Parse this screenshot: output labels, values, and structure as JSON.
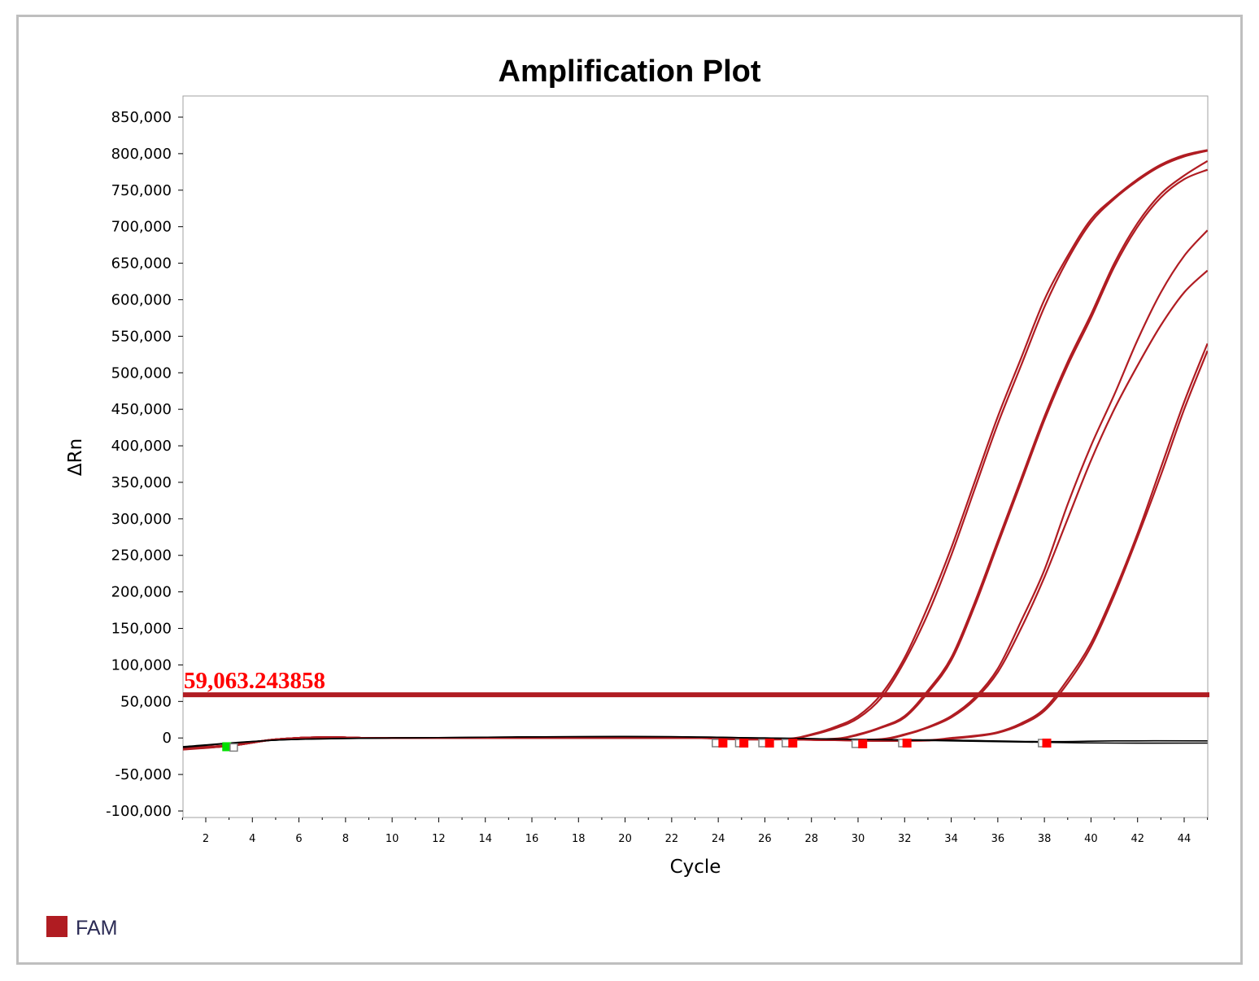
{
  "chart_data": {
    "type": "line",
    "title": "Amplification Plot",
    "xlabel": "Cycle",
    "ylabel": "ΔRn",
    "xlim": [
      1,
      45
    ],
    "ylim": [
      -100000,
      850000
    ],
    "x_ticks": [
      2,
      4,
      6,
      8,
      10,
      12,
      14,
      16,
      18,
      20,
      22,
      24,
      26,
      28,
      30,
      32,
      34,
      36,
      38,
      40,
      42,
      44
    ],
    "y_ticks": [
      {
        "value": 850000,
        "label": "850,000"
      },
      {
        "value": 800000,
        "label": "800,000"
      },
      {
        "value": 750000,
        "label": "750,000"
      },
      {
        "value": 700000,
        "label": "700,000"
      },
      {
        "value": 650000,
        "label": "650,000"
      },
      {
        "value": 600000,
        "label": "600,000"
      },
      {
        "value": 550000,
        "label": "550,000"
      },
      {
        "value": 500000,
        "label": "500,000"
      },
      {
        "value": 450000,
        "label": "450,000"
      },
      {
        "value": 400000,
        "label": "400,000"
      },
      {
        "value": 350000,
        "label": "350,000"
      },
      {
        "value": 300000,
        "label": "300,000"
      },
      {
        "value": 250000,
        "label": "250,000"
      },
      {
        "value": 200000,
        "label": "200,000"
      },
      {
        "value": 150000,
        "label": "150,000"
      },
      {
        "value": 100000,
        "label": "100,000"
      },
      {
        "value": 50000,
        "label": "50,000"
      },
      {
        "value": 0,
        "label": "0"
      },
      {
        "value": -50000,
        "label": "-50,000"
      },
      {
        "value": -100000,
        "label": "-100,000"
      }
    ],
    "grid": false,
    "threshold": {
      "value": 59063.243858,
      "label": "59,063.243858",
      "color": "#b01c22",
      "label_color": "#ff0000"
    },
    "legend": {
      "placement": "bottom-left",
      "entries": [
        {
          "label": "FAM",
          "color": "#b01c22"
        }
      ]
    },
    "series_color": "#b01c22",
    "series": [
      {
        "x": [
          1,
          3,
          5,
          7,
          9,
          11,
          13,
          15,
          17,
          19,
          21,
          23,
          25,
          27,
          28,
          29,
          30,
          31,
          32,
          33,
          34,
          35,
          36,
          37,
          38,
          39,
          40,
          41,
          42,
          43,
          44,
          45
        ],
        "y": [
          -14000,
          -10000,
          -2000,
          1000,
          0,
          0,
          0,
          0,
          0,
          0,
          0,
          0,
          -2000,
          -1000,
          5000,
          15000,
          30000,
          60000,
          110000,
          180000,
          260000,
          350000,
          440000,
          520000,
          600000,
          660000,
          710000,
          740000,
          765000,
          785000,
          798000,
          805000
        ]
      },
      {
        "x": [
          1,
          3,
          5,
          7,
          9,
          11,
          13,
          15,
          17,
          19,
          21,
          23,
          25,
          27,
          28,
          29,
          30,
          31,
          32,
          33,
          34,
          35,
          36,
          37,
          38,
          39,
          40,
          41,
          42,
          43,
          44,
          45
        ],
        "y": [
          -16000,
          -11000,
          -2000,
          1000,
          0,
          0,
          0,
          0,
          0,
          0,
          0,
          0,
          -2000,
          -1500,
          4000,
          13000,
          27000,
          55000,
          105000,
          170000,
          250000,
          340000,
          430000,
          510000,
          590000,
          655000,
          706000,
          738000,
          763000,
          783000,
          796000,
          804000
        ]
      },
      {
        "x": [
          1,
          3,
          5,
          7,
          9,
          11,
          13,
          15,
          17,
          19,
          21,
          23,
          25,
          27,
          29,
          30,
          31,
          32,
          33,
          34,
          35,
          36,
          37,
          38,
          39,
          40,
          41,
          42,
          43,
          44,
          45
        ],
        "y": [
          -14000,
          -10000,
          -2000,
          1000,
          0,
          0,
          0,
          0,
          0,
          0,
          0,
          0,
          -1000,
          -2000,
          -1000,
          5000,
          15000,
          30000,
          65000,
          110000,
          185000,
          270000,
          355000,
          440000,
          515000,
          580000,
          650000,
          705000,
          745000,
          770000,
          790000
        ]
      },
      {
        "x": [
          1,
          3,
          5,
          7,
          9,
          11,
          13,
          15,
          17,
          19,
          21,
          23,
          25,
          27,
          29,
          30,
          31,
          32,
          33,
          34,
          35,
          36,
          37,
          38,
          39,
          40,
          41,
          42,
          43,
          44,
          45
        ],
        "y": [
          -15000,
          -11000,
          -2000,
          1000,
          0,
          0,
          0,
          0,
          0,
          0,
          0,
          0,
          -1000,
          -2000,
          -1500,
          4000,
          14000,
          28000,
          62000,
          106000,
          180000,
          265000,
          350000,
          435000,
          510000,
          575000,
          645000,
          700000,
          740000,
          765000,
          778000
        ]
      },
      {
        "x": [
          1,
          3,
          5,
          7,
          9,
          11,
          13,
          15,
          17,
          19,
          21,
          23,
          25,
          27,
          29,
          31,
          32,
          33,
          34,
          35,
          36,
          37,
          38,
          39,
          40,
          41,
          42,
          43,
          44,
          45
        ],
        "y": [
          -14000,
          -10000,
          -2000,
          1000,
          0,
          0,
          0,
          0,
          0,
          0,
          0,
          0,
          -1000,
          -2000,
          -3000,
          -1500,
          5000,
          15000,
          30000,
          55000,
          95000,
          160000,
          230000,
          320000,
          400000,
          470000,
          545000,
          610000,
          660000,
          695000
        ]
      },
      {
        "x": [
          1,
          3,
          5,
          7,
          9,
          11,
          13,
          15,
          17,
          19,
          21,
          23,
          25,
          27,
          29,
          31,
          32,
          33,
          34,
          35,
          36,
          37,
          38,
          39,
          40,
          41,
          42,
          43,
          44,
          45
        ],
        "y": [
          -15000,
          -11000,
          -2000,
          1000,
          0,
          0,
          0,
          0,
          0,
          0,
          0,
          0,
          -1000,
          -2000,
          -3000,
          -2000,
          4000,
          14000,
          28000,
          52000,
          90000,
          150000,
          220000,
          300000,
          380000,
          450000,
          510000,
          565000,
          610000,
          640000
        ]
      },
      {
        "x": [
          1,
          3,
          5,
          7,
          9,
          11,
          13,
          15,
          17,
          19,
          21,
          23,
          25,
          27,
          29,
          31,
          33,
          34,
          35,
          36,
          37,
          38,
          39,
          40,
          41,
          42,
          43,
          44,
          45
        ],
        "y": [
          -14000,
          -10000,
          -2000,
          1000,
          0,
          0,
          0,
          0,
          0,
          0,
          0,
          0,
          -1000,
          -2000,
          -3000,
          -4000,
          -3000,
          0,
          3000,
          8000,
          20000,
          40000,
          80000,
          130000,
          200000,
          280000,
          370000,
          460000,
          540000
        ]
      },
      {
        "x": [
          1,
          3,
          5,
          7,
          9,
          11,
          13,
          15,
          17,
          19,
          21,
          23,
          25,
          27,
          29,
          31,
          33,
          34,
          35,
          36,
          37,
          38,
          39,
          40,
          41,
          42,
          43,
          44,
          45
        ],
        "y": [
          -15000,
          -11000,
          -2000,
          1000,
          0,
          0,
          0,
          0,
          0,
          0,
          0,
          0,
          -1000,
          -2000,
          -3000,
          -4000,
          -3500,
          -1000,
          2000,
          7000,
          18000,
          37000,
          75000,
          125000,
          195000,
          275000,
          360000,
          450000,
          530000
        ]
      }
    ],
    "baselines": [
      {
        "color": "#000000",
        "x": [
          1,
          5,
          10,
          20,
          26,
          30,
          34,
          38,
          41,
          45
        ],
        "y": [
          -12000,
          -3000,
          0,
          2000,
          0,
          -2000,
          -3000,
          -5000,
          -4000,
          -4000
        ]
      },
      {
        "color": "#000000",
        "x": [
          1,
          5,
          10,
          20,
          26,
          30,
          34,
          38,
          41,
          45
        ],
        "y": [
          -13000,
          -3000,
          0,
          2000,
          0,
          -2000,
          -4000,
          -6000,
          -7000,
          -7000
        ]
      }
    ],
    "markers": [
      {
        "x": 2.9,
        "y": -12000,
        "color": "#00e000",
        "style": "filled"
      },
      {
        "x": 3.2,
        "y": -13000,
        "color": "#808080",
        "style": "hollow"
      },
      {
        "x": 23.9,
        "y": -7000,
        "color": "#808080",
        "style": "hollow"
      },
      {
        "x": 24.2,
        "y": -7000,
        "color": "#ff0000",
        "style": "filled"
      },
      {
        "x": 24.9,
        "y": -7000,
        "color": "#808080",
        "style": "hollow"
      },
      {
        "x": 25.1,
        "y": -7000,
        "color": "#ff0000",
        "style": "filled"
      },
      {
        "x": 25.9,
        "y": -7000,
        "color": "#808080",
        "style": "hollow"
      },
      {
        "x": 26.2,
        "y": -7000,
        "color": "#ff0000",
        "style": "filled"
      },
      {
        "x": 26.9,
        "y": -7000,
        "color": "#808080",
        "style": "hollow"
      },
      {
        "x": 27.2,
        "y": -7000,
        "color": "#ff0000",
        "style": "filled"
      },
      {
        "x": 29.9,
        "y": -8000,
        "color": "#808080",
        "style": "hollow"
      },
      {
        "x": 30.2,
        "y": -8000,
        "color": "#ff0000",
        "style": "filled"
      },
      {
        "x": 31.9,
        "y": -7000,
        "color": "#808080",
        "style": "hollow"
      },
      {
        "x": 32.1,
        "y": -7000,
        "color": "#ff0000",
        "style": "filled"
      },
      {
        "x": 37.9,
        "y": -7000,
        "color": "#808080",
        "style": "hollow"
      },
      {
        "x": 38.1,
        "y": -7000,
        "color": "#ff0000",
        "style": "filled"
      }
    ]
  }
}
